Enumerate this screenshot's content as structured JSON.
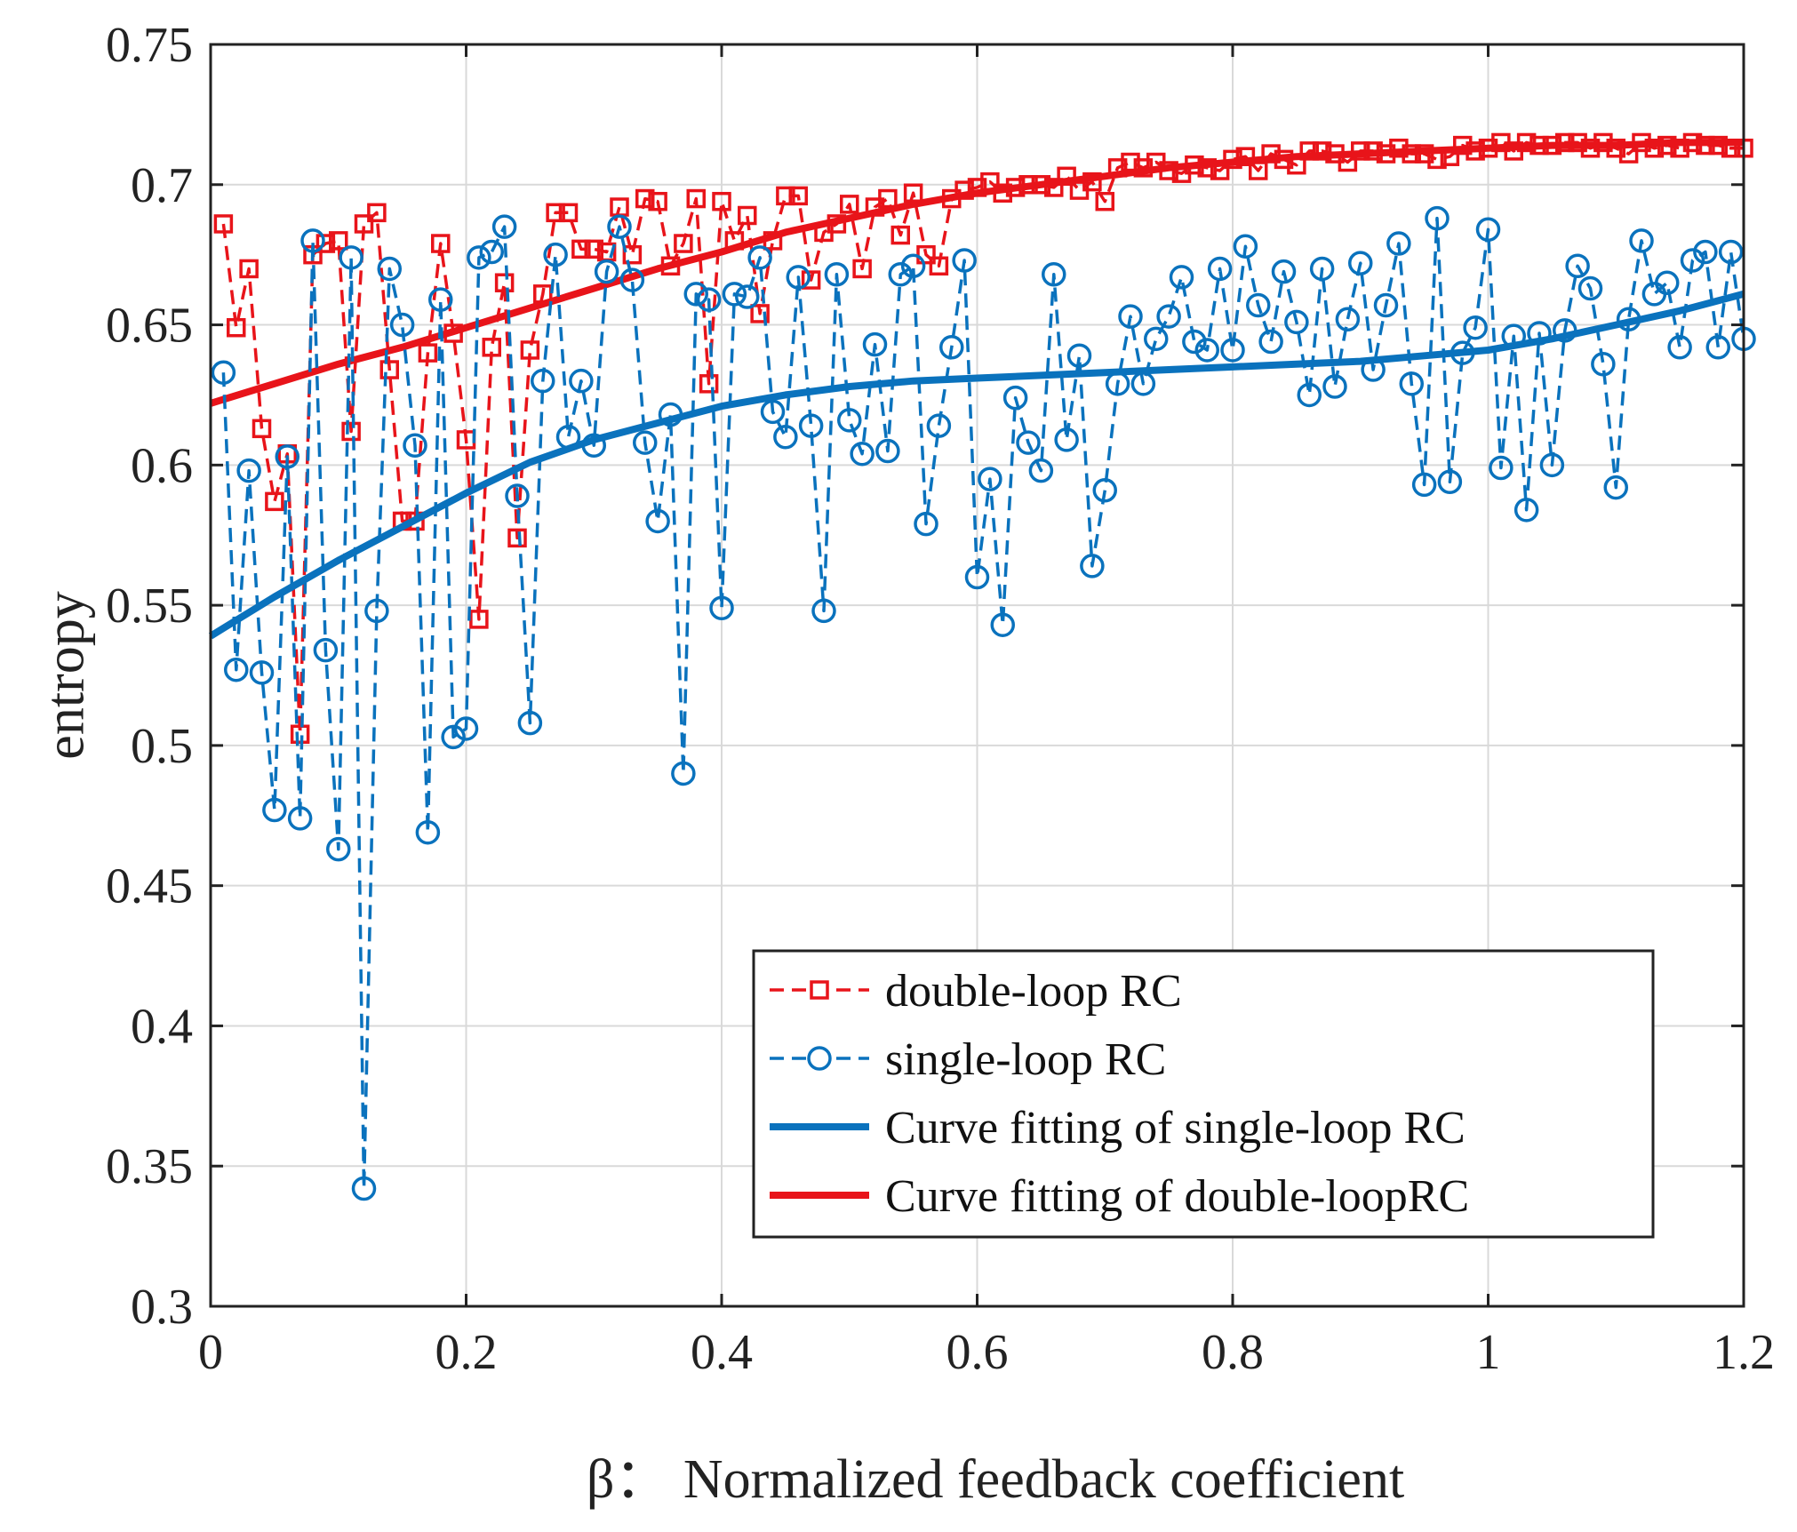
{
  "chart_data": {
    "type": "line",
    "title": "",
    "xlabel": "β：  Normalized feedback coefficient",
    "ylabel": "entropy",
    "xlim": [
      0,
      1.2
    ],
    "ylim": [
      0.3,
      0.75
    ],
    "grid": true,
    "x_ticks": [
      0,
      0.2,
      0.4,
      0.6,
      0.8,
      1.0,
      1.2
    ],
    "x_tick_labels": [
      "0",
      "0.2",
      "0.4",
      "0.6",
      "0.8",
      "1",
      "1.2"
    ],
    "y_ticks": [
      0.3,
      0.35,
      0.4,
      0.45,
      0.5,
      0.55,
      0.6,
      0.65,
      0.7,
      0.75
    ],
    "y_tick_labels": [
      "0.3",
      "0.35",
      "0.4",
      "0.45",
      "0.5",
      "0.55",
      "0.6",
      "0.65",
      "0.7",
      "0.75"
    ],
    "legend_position": "bottom-right",
    "x": [
      0.01,
      0.02,
      0.03,
      0.04,
      0.05,
      0.06,
      0.07,
      0.08,
      0.09,
      0.1,
      0.11,
      0.12,
      0.13,
      0.14,
      0.15,
      0.16,
      0.17,
      0.18,
      0.19,
      0.2,
      0.21,
      0.22,
      0.23,
      0.24,
      0.25,
      0.26,
      0.27,
      0.28,
      0.29,
      0.3,
      0.31,
      0.32,
      0.33,
      0.34,
      0.35,
      0.36,
      0.37,
      0.38,
      0.39,
      0.4,
      0.41,
      0.42,
      0.43,
      0.44,
      0.45,
      0.46,
      0.47,
      0.48,
      0.49,
      0.5,
      0.51,
      0.52,
      0.53,
      0.54,
      0.55,
      0.56,
      0.57,
      0.58,
      0.59,
      0.6,
      0.61,
      0.62,
      0.63,
      0.64,
      0.65,
      0.66,
      0.67,
      0.68,
      0.69,
      0.7,
      0.71,
      0.72,
      0.73,
      0.74,
      0.75,
      0.76,
      0.77,
      0.78,
      0.79,
      0.8,
      0.81,
      0.82,
      0.83,
      0.84,
      0.85,
      0.86,
      0.87,
      0.88,
      0.89,
      0.9,
      0.91,
      0.92,
      0.93,
      0.94,
      0.95,
      0.96,
      0.97,
      0.98,
      0.99,
      1.0,
      1.01,
      1.02,
      1.03,
      1.04,
      1.05,
      1.06,
      1.07,
      1.08,
      1.09,
      1.1,
      1.11,
      1.12,
      1.13,
      1.14,
      1.15,
      1.16,
      1.17,
      1.18,
      1.19,
      1.2
    ],
    "series": [
      {
        "name": "double-loop RC",
        "color": "#e8141a",
        "style": "dashed",
        "marker": "square",
        "values": [
          0.686,
          0.649,
          0.67,
          0.613,
          0.587,
          0.604,
          0.504,
          0.675,
          0.679,
          0.68,
          0.612,
          0.686,
          0.69,
          0.634,
          0.58,
          0.58,
          0.64,
          0.679,
          0.647,
          0.609,
          0.545,
          0.642,
          0.665,
          0.574,
          0.641,
          0.661,
          0.69,
          0.69,
          0.677,
          0.677,
          0.676,
          0.692,
          0.675,
          0.695,
          0.694,
          0.671,
          0.679,
          0.695,
          0.629,
          0.694,
          0.68,
          0.689,
          0.654,
          0.68,
          0.696,
          0.696,
          0.666,
          0.683,
          0.686,
          0.693,
          0.67,
          0.692,
          0.695,
          0.682,
          0.697,
          0.675,
          0.671,
          0.695,
          0.698,
          0.699,
          0.701,
          0.697,
          0.699,
          0.7,
          0.7,
          0.699,
          0.703,
          0.698,
          0.701,
          0.694,
          0.706,
          0.708,
          0.706,
          0.708,
          0.705,
          0.704,
          0.707,
          0.706,
          0.705,
          0.709,
          0.71,
          0.705,
          0.711,
          0.709,
          0.707,
          0.712,
          0.712,
          0.711,
          0.708,
          0.712,
          0.712,
          0.711,
          0.713,
          0.711,
          0.711,
          0.709,
          0.71,
          0.714,
          0.712,
          0.713,
          0.715,
          0.712,
          0.715,
          0.714,
          0.714,
          0.715,
          0.715,
          0.713,
          0.715,
          0.713,
          0.711,
          0.715,
          0.713,
          0.714,
          0.713,
          0.715,
          0.714,
          0.714,
          0.713,
          0.713
        ]
      },
      {
        "name": "single-loop RC",
        "color": "#0a72bd",
        "style": "dashed",
        "marker": "circle",
        "values": [
          0.633,
          0.527,
          0.598,
          0.526,
          0.477,
          0.603,
          0.474,
          0.68,
          0.534,
          0.463,
          0.674,
          0.342,
          0.548,
          0.67,
          0.65,
          0.607,
          0.469,
          0.659,
          0.503,
          0.506,
          0.674,
          0.676,
          0.685,
          0.589,
          0.508,
          0.63,
          0.675,
          0.61,
          0.63,
          0.607,
          0.669,
          0.685,
          0.666,
          0.608,
          0.58,
          0.618,
          0.49,
          0.661,
          0.659,
          0.549,
          0.661,
          0.66,
          0.674,
          0.619,
          0.61,
          0.667,
          0.614,
          0.548,
          0.668,
          0.616,
          0.604,
          0.643,
          0.605,
          0.668,
          0.671,
          0.579,
          0.614,
          0.642,
          0.673,
          0.56,
          0.595,
          0.543,
          0.624,
          0.608,
          0.598,
          0.668,
          0.609,
          0.639,
          0.564,
          0.591,
          0.629,
          0.653,
          0.629,
          0.645,
          0.653,
          0.667,
          0.644,
          0.641,
          0.67,
          0.641,
          0.678,
          0.657,
          0.644,
          0.669,
          0.651,
          0.625,
          0.67,
          0.628,
          0.652,
          0.672,
          0.634,
          0.657,
          0.679,
          0.629,
          0.593,
          0.688,
          0.594,
          0.64,
          0.649,
          0.684,
          0.599,
          0.646,
          0.584,
          0.647,
          0.6,
          0.648,
          0.671,
          0.663,
          0.636,
          0.592,
          0.652,
          0.68,
          0.661,
          0.665,
          0.642,
          0.673,
          0.676,
          0.642,
          0.676,
          0.645
        ]
      },
      {
        "name": "Curve fitting of single-loop RC",
        "color": "#0a72bd",
        "style": "solid",
        "marker": "none",
        "x": [
          0,
          0.05,
          0.1,
          0.15,
          0.2,
          0.25,
          0.3,
          0.35,
          0.4,
          0.45,
          0.5,
          0.55,
          0.6,
          0.65,
          0.7,
          0.75,
          0.8,
          0.85,
          0.9,
          0.95,
          1.0,
          1.05,
          1.1,
          1.15,
          1.2
        ],
        "values": [
          0.539,
          0.553,
          0.566,
          0.578,
          0.59,
          0.601,
          0.609,
          0.615,
          0.621,
          0.625,
          0.628,
          0.63,
          0.631,
          0.632,
          0.633,
          0.634,
          0.635,
          0.636,
          0.637,
          0.639,
          0.641,
          0.645,
          0.65,
          0.655,
          0.661
        ]
      },
      {
        "name": "Curve fitting of double-loopRC",
        "color": "#e8141a",
        "style": "solid",
        "marker": "none",
        "x": [
          0,
          0.05,
          0.1,
          0.15,
          0.2,
          0.25,
          0.3,
          0.35,
          0.4,
          0.45,
          0.5,
          0.55,
          0.6,
          0.65,
          0.7,
          0.75,
          0.8,
          0.85,
          0.9,
          0.95,
          1.0,
          1.05,
          1.1,
          1.15,
          1.2
        ],
        "values": [
          0.622,
          0.629,
          0.636,
          0.642,
          0.649,
          0.656,
          0.663,
          0.67,
          0.676,
          0.683,
          0.688,
          0.693,
          0.697,
          0.7,
          0.703,
          0.706,
          0.708,
          0.71,
          0.711,
          0.712,
          0.713,
          0.714,
          0.714,
          0.715,
          0.715
        ]
      }
    ]
  }
}
